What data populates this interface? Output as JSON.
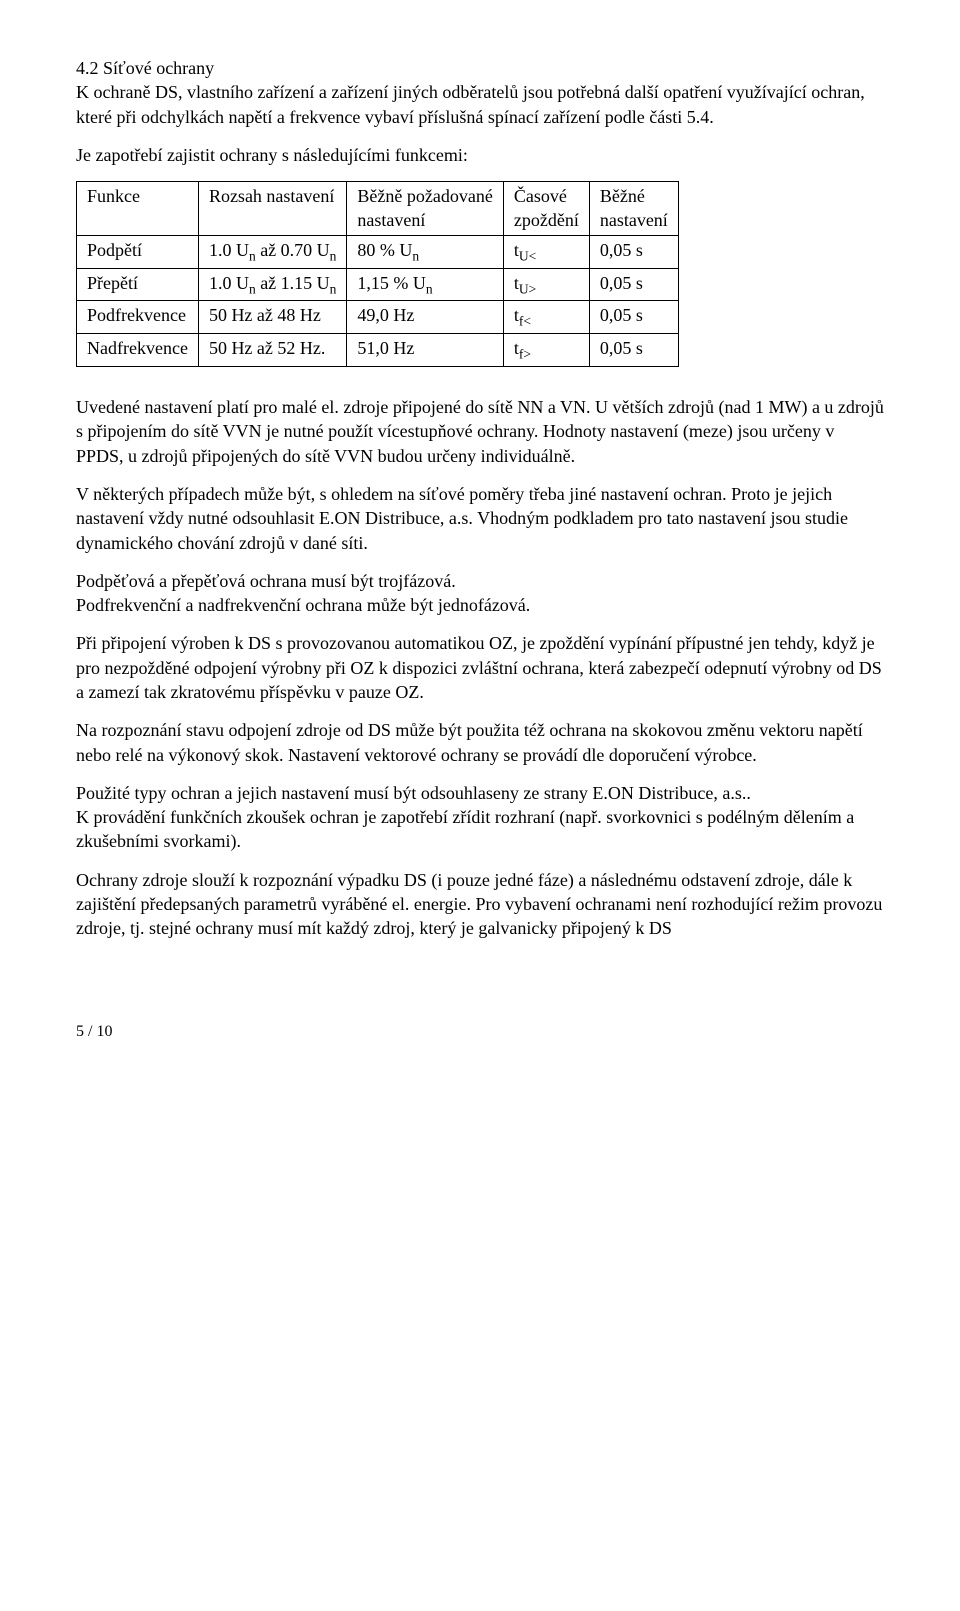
{
  "section": {
    "number": "4.2",
    "title": "Síťové ochrany"
  },
  "intro": "K ochraně DS, vlastního zařízení a zařízení jiných odběratelů jsou potřebná další opatření využívající ochran, které při odchylkách napětí a frekvence vybaví příslušná spínací zařízení podle části 5.4.",
  "lead": "Je zapotřebí zajistit ochrany s následujícími funkcemi:",
  "table": {
    "headers": [
      "Funkce",
      "Rozsah nastavení",
      "Běžně požadované nastavení",
      "Časové zpoždění",
      "Běžné nastavení"
    ],
    "rows": [
      {
        "c0": "Podpětí",
        "c1_a": "1.0 U",
        "c1_b": " až 0.70 U",
        "c2_a": "80 % U",
        "c3_a": "t",
        "c3_sub": "U<",
        "c4": "0,05 s"
      },
      {
        "c0": "Přepětí",
        "c1_a": "1.0 U",
        "c1_b": " až 1.15 U",
        "c2_a": "1,15 % U",
        "c3_a": "t",
        "c3_sub": "U>",
        "c4": "0,05 s"
      },
      {
        "c0": "Podfrekvence",
        "c1_plain": "50 Hz až 48 Hz",
        "c2_plain": "49,0 Hz",
        "c3_a": "t",
        "c3_sub": "f<",
        "c4": "0,05 s"
      },
      {
        "c0": "Nadfrekvence",
        "c1_plain": "50 Hz až 52 Hz.",
        "c2_plain": "51,0 Hz",
        "c3_a": "t",
        "c3_sub": "f>",
        "c4": "0,05 s"
      }
    ]
  },
  "paragraphs": [
    "Uvedené nastavení platí pro malé el. zdroje připojené do sítě NN a VN. U větších zdrojů (nad 1 MW) a u zdrojů s připojením do sítě VVN je nutné použít vícestupňové ochrany. Hodnoty nastavení (meze) jsou určeny v PPDS, u zdrojů připojených do sítě VVN budou určeny individuálně.",
    "V některých případech může být, s ohledem na síťové poměry třeba jiné nastavení ochran. Proto je jejich nastavení vždy nutné odsouhlasit E.ON Distribuce, a.s. Vhodným podkladem pro tato nastavení jsou studie dynamického chování zdrojů v dané síti.",
    "Při připojení výroben k DS s provozovanou automatikou OZ, je zpoždění vypínání přípustné jen tehdy, když je pro nezpožděné odpojení výrobny při OZ k dispozici zvláštní ochrana, která zabezpečí odepnutí výrobny od DS a zamezí tak zkratovému příspěvku v pauze OZ.",
    "Na rozpoznání stavu odpojení zdroje od DS může být použita též ochrana na skokovou změnu vektoru napětí nebo relé na výkonový skok. Nastavení vektorové ochrany se provádí dle doporučení výrobce.",
    "Použité typy ochran a jejich nastavení musí být odsouhlaseny ze strany E.ON Distribuce, a.s..",
    "K provádění funkčních zkoušek ochran je zapotřebí zřídit rozhraní (např. svorkovnici s podélným dělením a zkušebními svorkami).",
    "Ochrany zdroje slouží k rozpoznání výpadku DS (i pouze jedné fáze) a následnému odstavení zdroje, dále k zajištění předepsaných parametrů vyráběné el. energie. Pro vybavení ochranami není rozhodující režim provozu zdroje, tj. stejné ochrany musí mít každý zdroj, který je galvanicky připojený k DS"
  ],
  "two_line": {
    "l1": "Podpěťová a přepěťová ochrana musí být trojfázová.",
    "l2": "Podfrekvenční a nadfrekvenční ochrana může být jednofázová."
  },
  "page": "5 / 10"
}
